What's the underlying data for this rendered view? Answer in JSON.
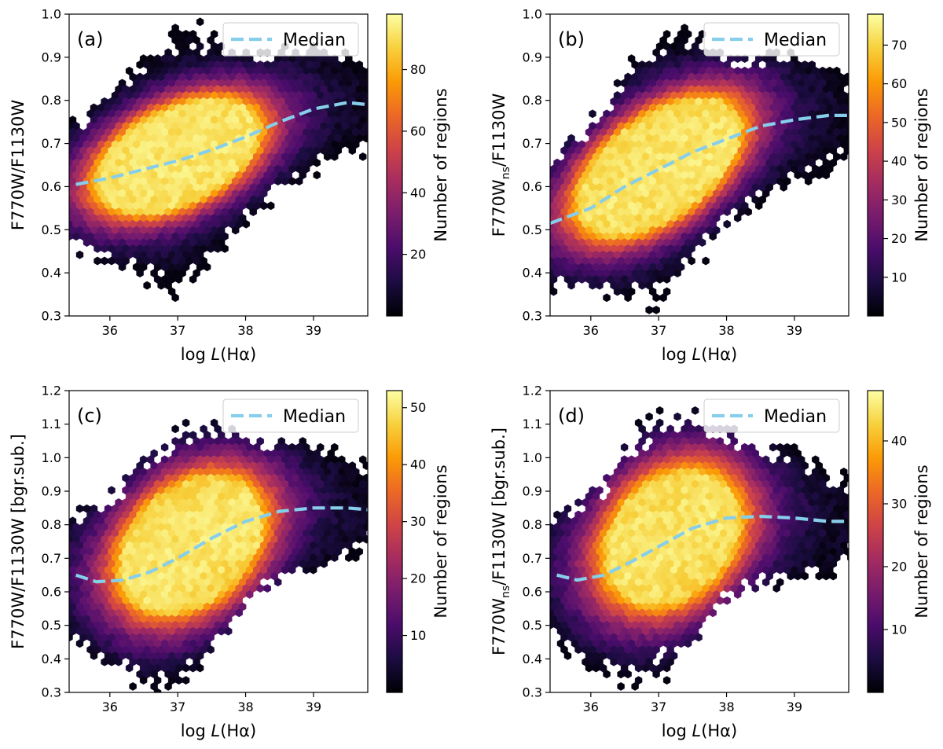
{
  "colorscale": [
    "#000004",
    "#1b0c41",
    "#4a0c6b",
    "#781c6d",
    "#a52c60",
    "#cf4446",
    "#ed6925",
    "#fb9b06",
    "#f7d13d",
    "#fcffa4"
  ],
  "median_color": "#87ceeb",
  "chart_data": [
    {
      "type": "hexbin",
      "panel_label": "(a)",
      "xlabel_prefix": "log ",
      "xlabel_var": "L",
      "xlabel_suffix": "(Hα)",
      "ylabel_parts": [
        "F770W/F1130W"
      ],
      "xlim": [
        35.4,
        39.8
      ],
      "ylim": [
        0.3,
        1.0
      ],
      "xticks": [
        36,
        37,
        38,
        39
      ],
      "yticks": [
        0.3,
        0.4,
        0.5,
        0.6,
        0.7,
        0.8,
        0.9,
        1.0
      ],
      "colorbar": {
        "label": "Number of regions",
        "min": 0,
        "max": 98,
        "ticks": [
          20,
          40,
          60,
          80
        ]
      },
      "legend": {
        "entries": [
          "Median"
        ],
        "placement": "top-right"
      },
      "median_line": {
        "x": [
          35.5,
          36.0,
          36.5,
          37.0,
          37.5,
          38.0,
          38.5,
          39.0,
          39.5,
          39.8
        ],
        "y": [
          0.605,
          0.62,
          0.64,
          0.66,
          0.685,
          0.715,
          0.75,
          0.78,
          0.795,
          0.79
        ]
      },
      "density": {
        "center": [
          37.0,
          0.67
        ],
        "spread": [
          0.75,
          0.075
        ],
        "orient": 0.05,
        "sat": 0.3
      }
    },
    {
      "type": "hexbin",
      "panel_label": "(b)",
      "xlabel_prefix": "log ",
      "xlabel_var": "L",
      "xlabel_suffix": "(Hα)",
      "ylabel_parts": [
        "F770W",
        "ns",
        "/F1130W"
      ],
      "xlim": [
        35.4,
        39.8
      ],
      "ylim": [
        0.3,
        1.0
      ],
      "xticks": [
        36,
        37,
        38,
        39
      ],
      "yticks": [
        0.3,
        0.4,
        0.5,
        0.6,
        0.7,
        0.8,
        0.9,
        1.0
      ],
      "colorbar": {
        "label": "Number of regions",
        "min": 0,
        "max": 78,
        "ticks": [
          10,
          20,
          30,
          40,
          50,
          60,
          70
        ]
      },
      "legend": {
        "entries": [
          "Median"
        ],
        "placement": "top-right"
      },
      "median_line": {
        "x": [
          35.4,
          36.0,
          36.5,
          37.0,
          37.5,
          38.0,
          38.5,
          39.0,
          39.5,
          39.8
        ],
        "y": [
          0.515,
          0.55,
          0.6,
          0.64,
          0.68,
          0.71,
          0.74,
          0.755,
          0.765,
          0.765
        ]
      },
      "density": {
        "center": [
          37.0,
          0.645
        ],
        "spread": [
          0.75,
          0.085
        ],
        "orient": 0.07,
        "sat": 0.3
      }
    },
    {
      "type": "hexbin",
      "panel_label": "(c)",
      "xlabel_prefix": "log ",
      "xlabel_var": "L",
      "xlabel_suffix": "(Hα)",
      "ylabel_parts": [
        "F770W/F1130W [bgr.sub.]"
      ],
      "xlim": [
        35.4,
        39.8
      ],
      "ylim": [
        0.3,
        1.2
      ],
      "xticks": [
        36,
        37,
        38,
        39
      ],
      "yticks": [
        0.3,
        0.4,
        0.5,
        0.6,
        0.7,
        0.8,
        0.9,
        1.0,
        1.1,
        1.2
      ],
      "colorbar": {
        "label": "Number of regions",
        "min": 0,
        "max": 53,
        "ticks": [
          10,
          20,
          30,
          40,
          50
        ]
      },
      "legend": {
        "entries": [
          "Median"
        ],
        "placement": "top-right"
      },
      "median_line": {
        "x": [
          35.5,
          35.8,
          36.2,
          36.6,
          37.0,
          37.5,
          38.0,
          38.5,
          39.0,
          39.5,
          39.8
        ],
        "y": [
          0.65,
          0.63,
          0.635,
          0.66,
          0.7,
          0.76,
          0.81,
          0.84,
          0.85,
          0.85,
          0.845
        ]
      },
      "density": {
        "center": [
          37.2,
          0.74
        ],
        "spread": [
          0.7,
          0.13
        ],
        "orient": 0.06,
        "sat": 0.35
      }
    },
    {
      "type": "hexbin",
      "panel_label": "(d)",
      "xlabel_prefix": "log ",
      "xlabel_var": "L",
      "xlabel_suffix": "(Hα)",
      "ylabel_parts": [
        "F770W",
        "ns",
        "/F1130W [bgr.sub.]"
      ],
      "xlim": [
        35.4,
        39.8
      ],
      "ylim": [
        0.3,
        1.2
      ],
      "xticks": [
        36,
        37,
        38,
        39
      ],
      "yticks": [
        0.3,
        0.4,
        0.5,
        0.6,
        0.7,
        0.8,
        0.9,
        1.0,
        1.1,
        1.2
      ],
      "colorbar": {
        "label": "Number of regions",
        "min": 0,
        "max": 48,
        "ticks": [
          10,
          20,
          30,
          40
        ]
      },
      "legend": {
        "entries": [
          "Median"
        ],
        "placement": "top-right"
      },
      "median_line": {
        "x": [
          35.5,
          35.8,
          36.2,
          36.6,
          37.0,
          37.5,
          38.0,
          38.5,
          39.0,
          39.5,
          39.8
        ],
        "y": [
          0.65,
          0.635,
          0.65,
          0.69,
          0.735,
          0.79,
          0.82,
          0.825,
          0.82,
          0.81,
          0.81
        ]
      },
      "density": {
        "center": [
          37.2,
          0.76
        ],
        "spread": [
          0.7,
          0.14
        ],
        "orient": 0.05,
        "sat": 0.4
      }
    }
  ]
}
